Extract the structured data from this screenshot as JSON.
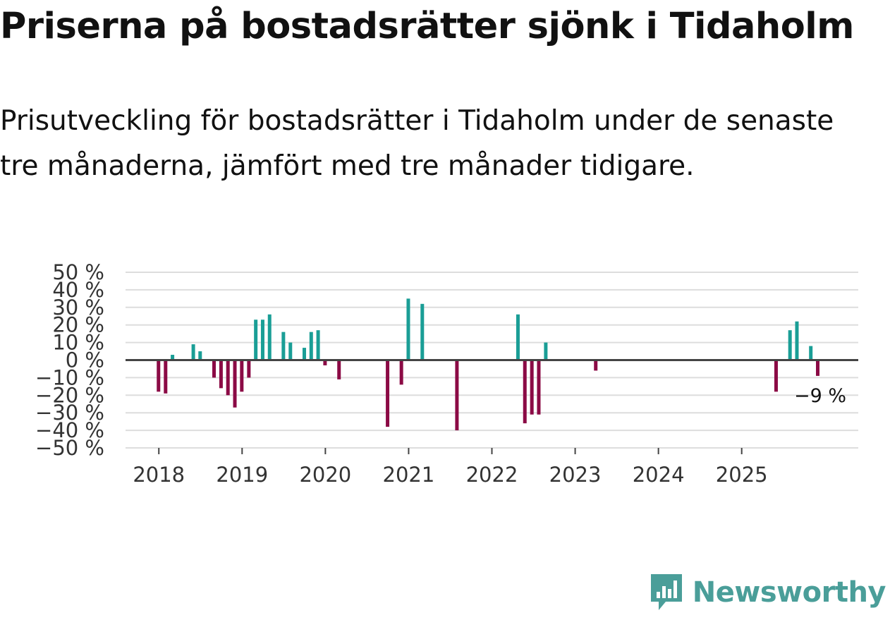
{
  "title": "Priserna på bostadsrätter sjönk i Tidaholm",
  "subtitle": "Prisutveckling för bostadsrätter i Tidaholm under de senaste tre månaderna, jämfört med tre månader tidigare.",
  "brand": {
    "name": "Newsworthy",
    "icon": "newsworthy-logo-icon",
    "color": "#4a9e99"
  },
  "colors": {
    "positive": "#1a9e96",
    "negative": "#8b0a45",
    "grid": "#dddddd",
    "zero_line": "#444444"
  },
  "chart_data": {
    "type": "bar",
    "title": "Priserna på bostadsrätter sjönk i Tidaholm",
    "ylabel": "",
    "xlabel": "",
    "ylim": [
      -50,
      50
    ],
    "yticks": [
      50,
      40,
      30,
      20,
      10,
      0,
      -10,
      -20,
      -30,
      -40,
      -50
    ],
    "ytick_labels": [
      "50 %",
      "40 %",
      "30 %",
      "20 %",
      "10 %",
      "0 %",
      "−10 %",
      "−20 %",
      "−30 %",
      "−40 %",
      "−50 %"
    ],
    "xrange": [
      2017.6,
      2026.4
    ],
    "xticks": [
      2018,
      2019,
      2020,
      2021,
      2022,
      2023,
      2024,
      2025
    ],
    "xtick_labels": [
      "2018",
      "2019",
      "2020",
      "2021",
      "2022",
      "2023",
      "2024",
      "2025"
    ],
    "end_label": "−9 %",
    "series": [
      {
        "name": "Prisutveckling",
        "points": [
          {
            "x": 2017.996,
            "y": -18
          },
          {
            "x": 2018.081,
            "y": -19
          },
          {
            "x": 2018.164,
            "y": 3
          },
          {
            "x": 2018.414,
            "y": 9
          },
          {
            "x": 2018.496,
            "y": 5
          },
          {
            "x": 2018.663,
            "y": -10
          },
          {
            "x": 2018.747,
            "y": -16
          },
          {
            "x": 2018.83,
            "y": -20
          },
          {
            "x": 2018.913,
            "y": -27
          },
          {
            "x": 2018.996,
            "y": -18
          },
          {
            "x": 2019.081,
            "y": -10
          },
          {
            "x": 2019.164,
            "y": 23
          },
          {
            "x": 2019.247,
            "y": 23
          },
          {
            "x": 2019.33,
            "y": 26
          },
          {
            "x": 2019.496,
            "y": 16
          },
          {
            "x": 2019.58,
            "y": 10
          },
          {
            "x": 2019.747,
            "y": 7
          },
          {
            "x": 2019.83,
            "y": 16
          },
          {
            "x": 2019.913,
            "y": 17
          },
          {
            "x": 2019.996,
            "y": -3
          },
          {
            "x": 2020.164,
            "y": -11
          },
          {
            "x": 2020.747,
            "y": -38
          },
          {
            "x": 2020.913,
            "y": -14
          },
          {
            "x": 2020.996,
            "y": 35
          },
          {
            "x": 2021.164,
            "y": 32
          },
          {
            "x": 2021.58,
            "y": -40
          },
          {
            "x": 2022.313,
            "y": 26
          },
          {
            "x": 2022.396,
            "y": -36
          },
          {
            "x": 2022.48,
            "y": -31
          },
          {
            "x": 2022.563,
            "y": -31
          },
          {
            "x": 2022.647,
            "y": 10
          },
          {
            "x": 2023.247,
            "y": -6
          },
          {
            "x": 2025.413,
            "y": -18
          },
          {
            "x": 2025.58,
            "y": 17
          },
          {
            "x": 2025.663,
            "y": 22
          },
          {
            "x": 2025.83,
            "y": 8
          },
          {
            "x": 2025.913,
            "y": -9
          }
        ]
      }
    ]
  }
}
